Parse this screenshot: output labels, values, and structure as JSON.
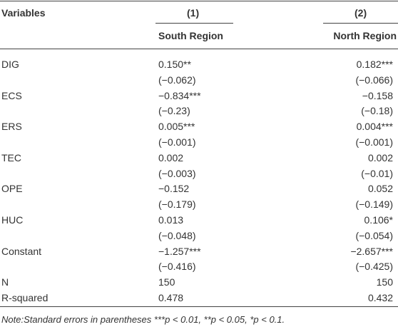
{
  "table": {
    "header": {
      "variables": "Variables",
      "columns": [
        {
          "number": "(1)",
          "name": "South Region"
        },
        {
          "number": "(2)",
          "name": "North Region"
        }
      ]
    },
    "rows": [
      {
        "variable": "DIG",
        "coef": [
          "0.150**",
          "0.182***"
        ],
        "se": [
          "(−0.062)",
          "(−0.066)"
        ]
      },
      {
        "variable": "ECS",
        "coef": [
          "−0.834***",
          "−0.158"
        ],
        "se": [
          "(−0.23)",
          "(−0.18)"
        ]
      },
      {
        "variable": "ERS",
        "coef": [
          "0.005***",
          "0.004***"
        ],
        "se": [
          "(−0.001)",
          "(−0.001)"
        ]
      },
      {
        "variable": "TEC",
        "coef": [
          "0.002",
          "0.002"
        ],
        "se": [
          "(−0.003)",
          "(−0.01)"
        ]
      },
      {
        "variable": "OPE",
        "coef": [
          "−0.152",
          "0.052"
        ],
        "se": [
          "(−0.179)",
          "(−0.149)"
        ]
      },
      {
        "variable": "HUC",
        "coef": [
          "0.013",
          "0.106*"
        ],
        "se": [
          "(−0.048)",
          "(−0.054)"
        ]
      },
      {
        "variable": "Constant",
        "coef": [
          "−1.257***",
          "−2.657***"
        ],
        "se": [
          "(−0.416)",
          "(−0.425)"
        ]
      },
      {
        "variable": "N",
        "coef": [
          "150",
          "150"
        ]
      },
      {
        "variable": "R-squared",
        "coef": [
          "0.478",
          "0.432"
        ]
      }
    ],
    "note": "Note:Standard errors in parentheses ***p < 0.01, **p < 0.05, *p < 0.1."
  }
}
